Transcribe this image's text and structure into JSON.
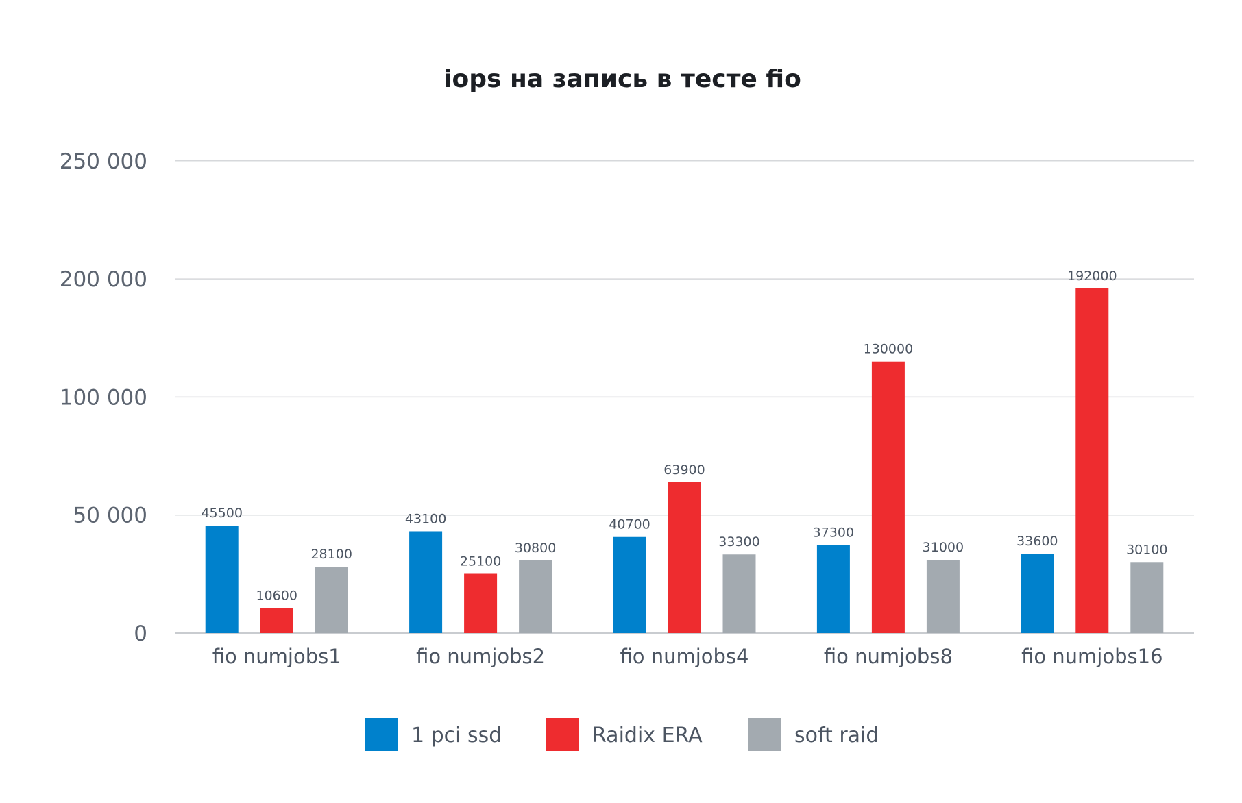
{
  "chart_data": {
    "type": "bar",
    "title": "iops на запись в тесте fio",
    "xlabel": "",
    "ylabel": "",
    "categories": [
      "fio numjobs1",
      "fio numjobs2",
      "fio numjobs4",
      "fio numjobs8",
      "fio numjobs16"
    ],
    "y_ticks": [
      {
        "value": 0,
        "label": "0"
      },
      {
        "value": 50000,
        "label": "50 000"
      },
      {
        "value": 100000,
        "label": "100 000"
      },
      {
        "value": 200000,
        "label": "200 000"
      },
      {
        "value": 250000,
        "label": "250 000"
      }
    ],
    "grid": true,
    "legend_position": "bottom",
    "series": [
      {
        "name": "1 pci ssd",
        "color": "#0081CC",
        "values": [
          45500,
          43100,
          40700,
          37300,
          33600
        ]
      },
      {
        "name": "Raidix ERA",
        "color": "#EE2C2F",
        "values": [
          10600,
          25100,
          63900,
          130000,
          192000
        ]
      },
      {
        "name": "soft raid",
        "color": "#A3AAB0",
        "values": [
          28100,
          30800,
          33300,
          31000,
          30100
        ]
      }
    ]
  }
}
